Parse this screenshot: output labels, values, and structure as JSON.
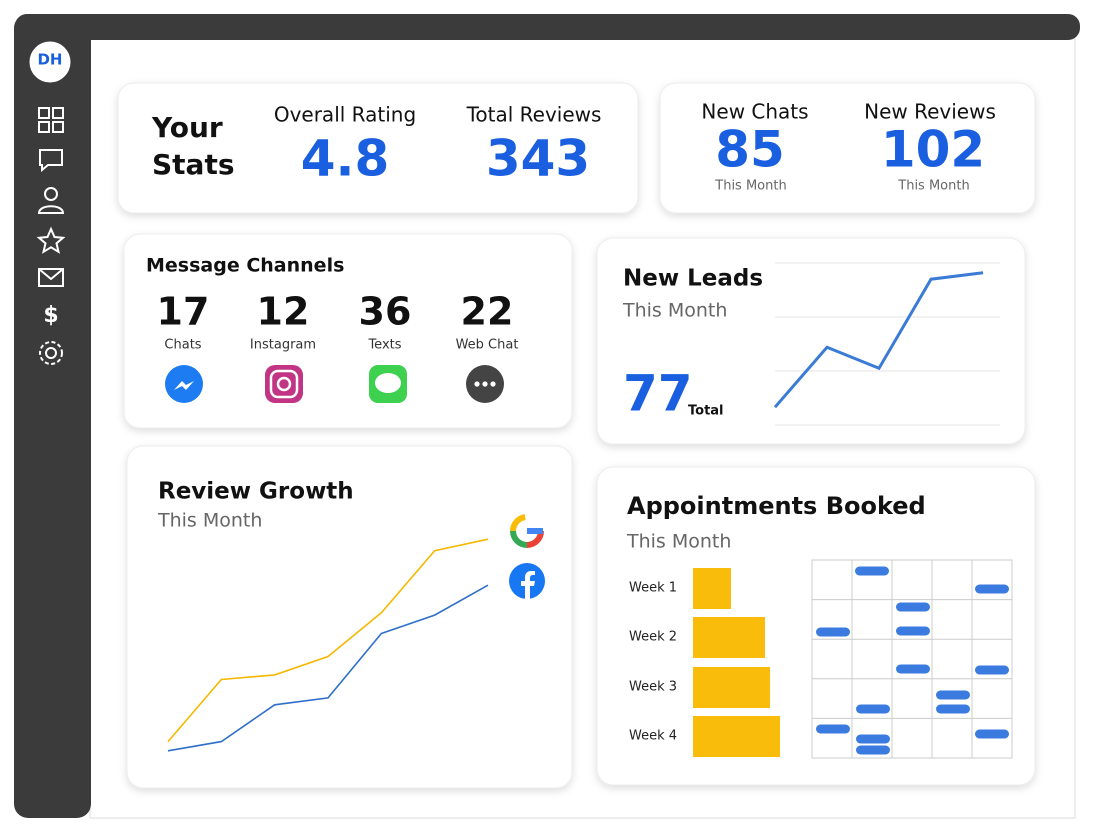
{
  "logo": "DH",
  "stats": {
    "title": [
      "Your",
      "Stats"
    ],
    "items": [
      {
        "label": "Overall Rating",
        "value": "4.8"
      },
      {
        "label": "Total Reviews",
        "value": "343"
      }
    ]
  },
  "monthly": {
    "items": [
      {
        "label": "New Chats",
        "value": "85",
        "note": "This Month"
      },
      {
        "label": "New Reviews",
        "value": "102",
        "note": "This Month"
      }
    ]
  },
  "channels": {
    "title": "Message Channels",
    "items": [
      {
        "value": "17",
        "label": "Chats"
      },
      {
        "value": "12",
        "label": "Instagram"
      },
      {
        "value": "36",
        "label": "Texts"
      },
      {
        "value": "22",
        "label": "Web Chat"
      }
    ]
  },
  "chart_data": [
    {
      "type": "line",
      "title": "New Leads",
      "subtitle": "This Month",
      "total": "77",
      "total_label": "Total",
      "values": [
        11,
        48,
        35,
        90,
        94
      ],
      "color": "#3a7bd5",
      "ylim": [
        0,
        100
      ]
    },
    {
      "type": "line",
      "title": "Review Growth",
      "subtitle": "This Month",
      "ylim": [
        0,
        100
      ],
      "series": [
        {
          "color": "#f5b800",
          "values": [
            8,
            35,
            37,
            45,
            64,
            91,
            96
          ]
        },
        {
          "color": "#2f6fc9",
          "values": [
            4,
            8,
            24,
            27,
            55,
            63,
            76
          ]
        }
      ]
    },
    {
      "type": "bar",
      "orientation": "horizontal",
      "title": "Appointments Booked",
      "subtitle": "This Month",
      "categories": [
        "Week 1",
        "Week 2",
        "Week 3",
        "Week 4"
      ],
      "values": [
        38,
        72,
        77,
        87
      ],
      "color": "#f9bc0a",
      "xlim": [
        0,
        100
      ]
    }
  ]
}
